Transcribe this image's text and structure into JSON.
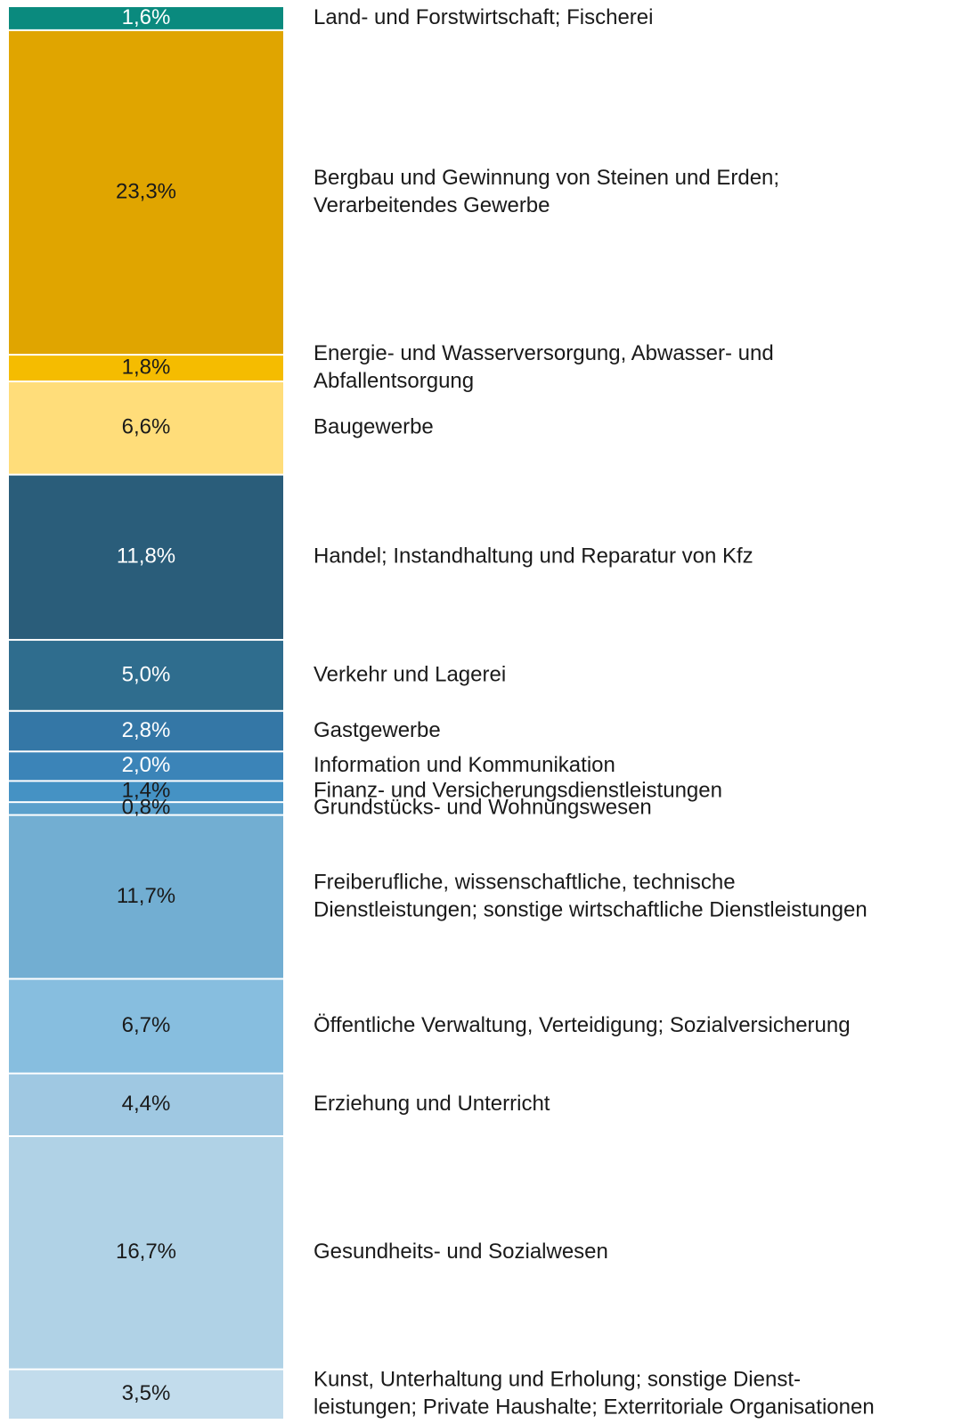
{
  "chart_data": {
    "type": "stacked-column",
    "categories": [
      [
        "Land- und Forstwirtschaft; Fischerei"
      ],
      [
        "Bergbau und Gewinnung von Steinen und Erden;",
        "Verarbeitendes Gewerbe"
      ],
      [
        "Energie- und Wasserversorgung, Abwasser- und",
        "Abfallentsorgung"
      ],
      [
        "Baugewerbe"
      ],
      [
        "Handel; Instandhaltung und Reparatur von Kfz"
      ],
      [
        "Verkehr und Lagerei"
      ],
      [
        "Gastgewerbe"
      ],
      [
        "Information und Kommunikation"
      ],
      [
        "Finanz- und Versicherungsdienstleistungen"
      ],
      [
        "Grundstücks- und Wohnungswesen"
      ],
      [
        "Freiberufliche, wissenschaftliche, technische",
        "Dienstleistungen; sonstige wirtschaftliche Dienstleistungen"
      ],
      [
        "Öffentliche Verwaltung, Verteidigung; Sozialversicherung"
      ],
      [
        "Erziehung und Unterricht"
      ],
      [
        "Gesundheits- und Sozialwesen"
      ],
      [
        "Kunst, Unterhaltung und Erholung; sonstige Dienst-",
        "leistungen; Private Haushalte; Exterritoriale Organisationen"
      ]
    ],
    "values": [
      1.6,
      23.3,
      1.8,
      6.6,
      11.8,
      5.0,
      2.8,
      2.0,
      1.4,
      0.8,
      11.7,
      6.7,
      4.4,
      16.7,
      3.5
    ],
    "value_labels": [
      "1,6%",
      "23,3%",
      "1,8%",
      "6,6%",
      "11,8%",
      "5,0%",
      "2,8%",
      "2,0%",
      "1,4%",
      "0,8%",
      "11,7%",
      "6,7%",
      "4,4%",
      "16,7%",
      "3,5%"
    ],
    "colors": [
      "#0a8a7e",
      "#e0a500",
      "#f5bc00",
      "#ffdd7a",
      "#2a5d7a",
      "#2f6d8e",
      "#3477a6",
      "#3b84b8",
      "#4592c4",
      "#5aa0cc",
      "#72aed2",
      "#87bedf",
      "#9fc8e2",
      "#b0d2e6",
      "#c2dcec"
    ],
    "value_label_colors": [
      "#ffffff",
      "#1a1a1a",
      "#1a1a1a",
      "#1a1a1a",
      "#ffffff",
      "#ffffff",
      "#ffffff",
      "#ffffff",
      "#1a1a1a",
      "#1a1a1a",
      "#1a1a1a",
      "#1a1a1a",
      "#1a1a1a",
      "#1a1a1a",
      "#1a1a1a"
    ]
  }
}
